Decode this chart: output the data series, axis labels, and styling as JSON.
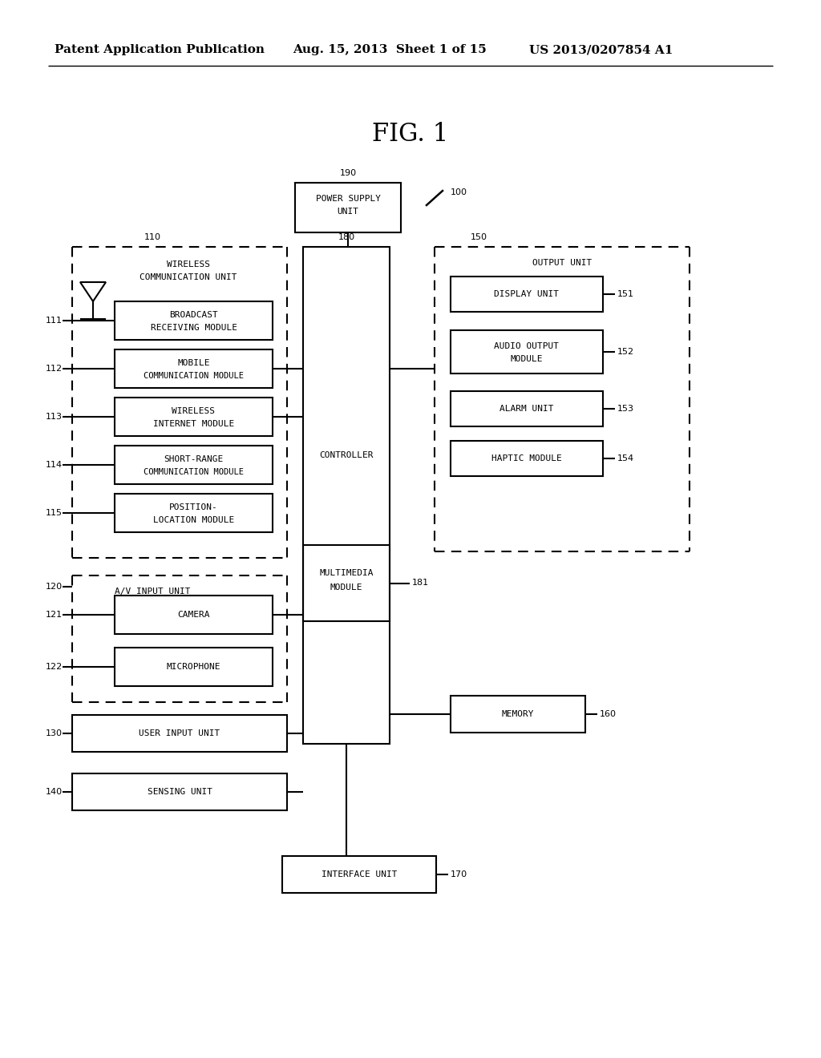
{
  "title": "FIG. 1",
  "header_left": "Patent Application Publication",
  "header_center": "Aug. 15, 2013  Sheet 1 of 15",
  "header_right": "US 2013/0207854 A1",
  "bg_color": "#ffffff",
  "line_color": "#000000",
  "text_color": "#000000",
  "font_size_header": 11,
  "font_size_title": 22,
  "font_size_label": 8,
  "font_size_ref": 8
}
